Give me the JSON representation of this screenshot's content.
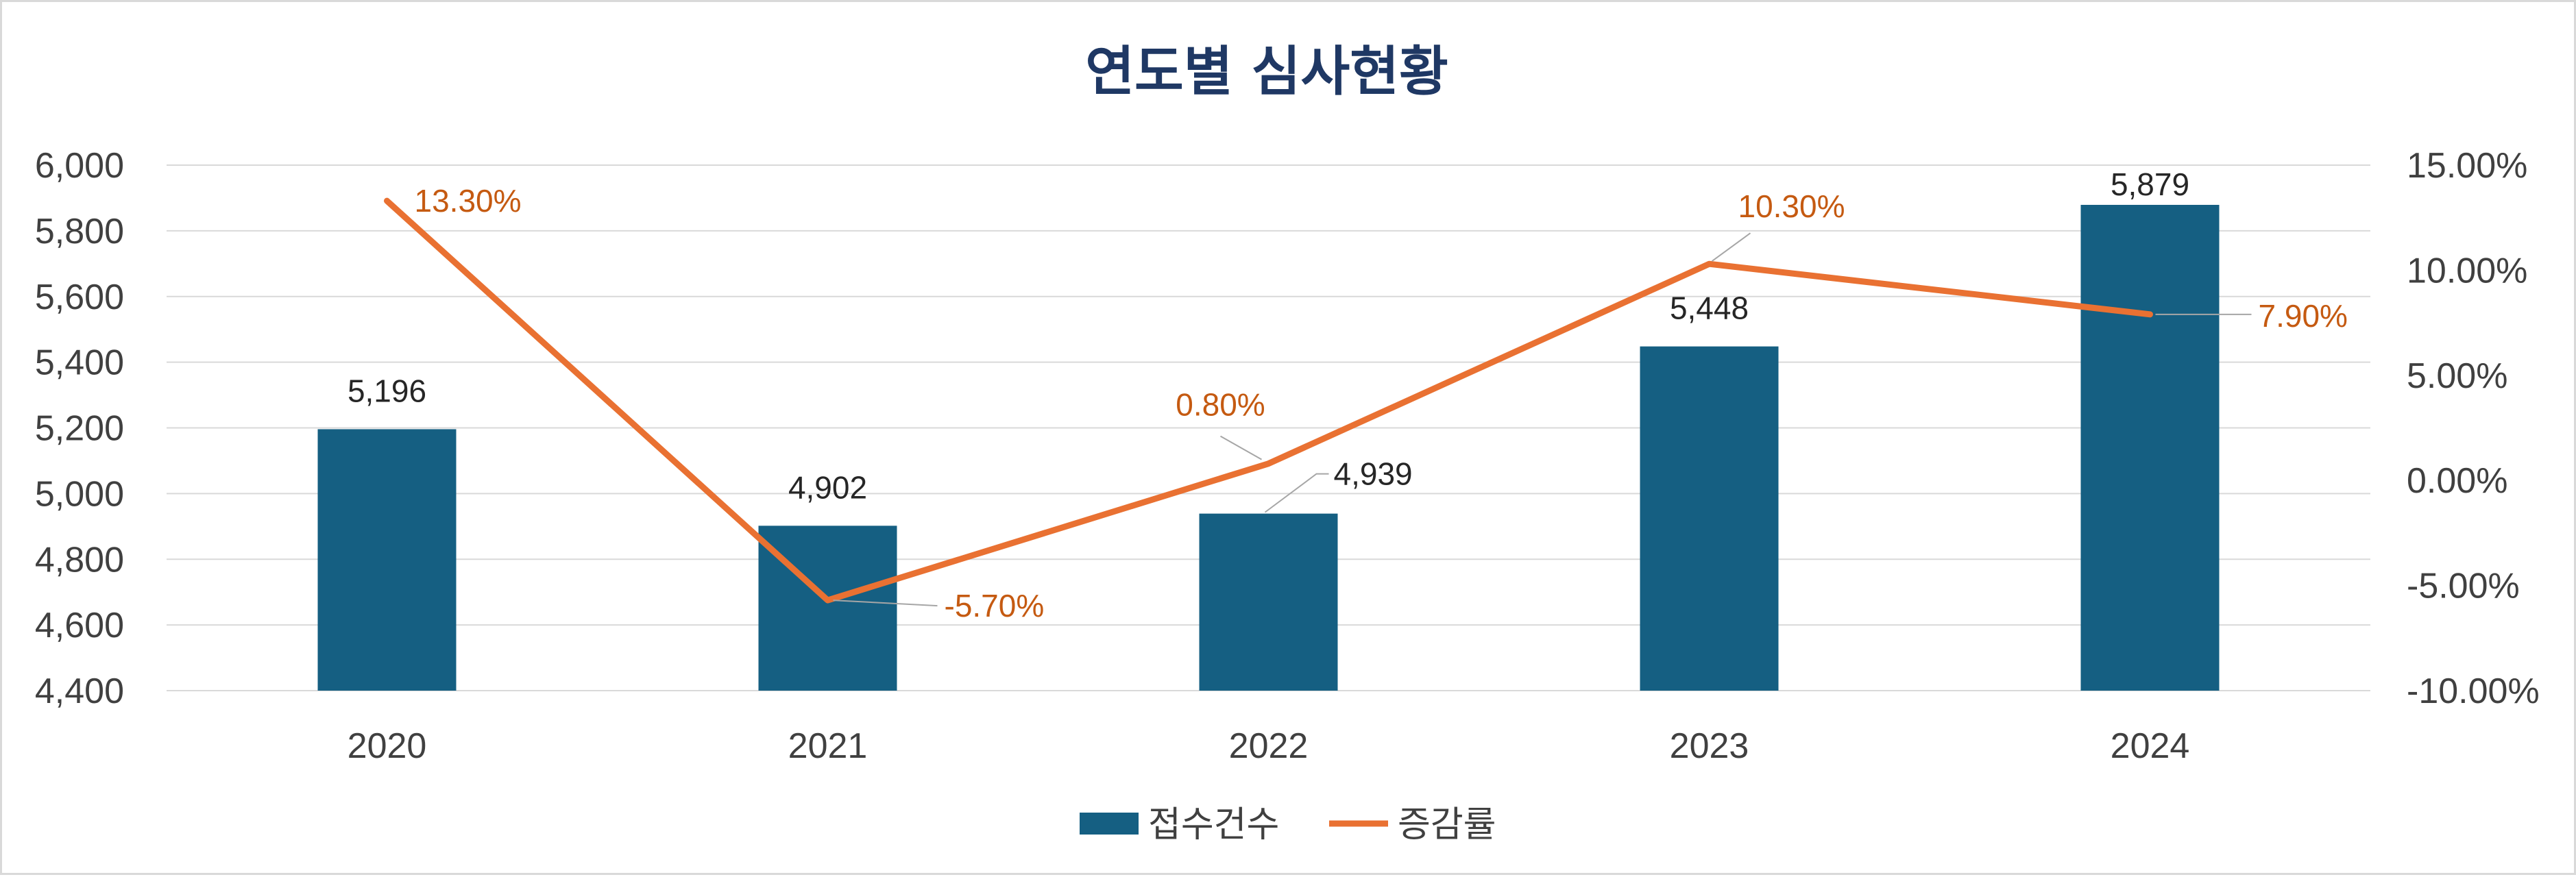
{
  "chart_data": {
    "type": "bar",
    "title": "연도별 심사현황",
    "categories": [
      "2020",
      "2021",
      "2022",
      "2023",
      "2024"
    ],
    "series": [
      {
        "name": "접수건수",
        "type": "bar",
        "axis": "left",
        "values": [
          5196,
          4902,
          4939,
          5448,
          5879
        ],
        "labels": [
          "5,196",
          "4,902",
          "4,939",
          "5,448",
          "5,879"
        ],
        "color": "#155f82"
      },
      {
        "name": "증감률",
        "type": "line",
        "axis": "right",
        "values": [
          13.3,
          -5.7,
          0.8,
          10.3,
          7.9
        ],
        "labels": [
          "13.30%",
          "-5.70%",
          "0.80%",
          "10.30%",
          "7.90%"
        ],
        "color": "#e97132",
        "label_color": "#c55a11"
      }
    ],
    "y_left": {
      "min": 4400,
      "max": 6000,
      "step": 200,
      "ticks": [
        "4,400",
        "4,600",
        "4,800",
        "5,000",
        "5,200",
        "5,400",
        "5,600",
        "5,800",
        "6,000"
      ]
    },
    "y_right": {
      "min": -10,
      "max": 15,
      "step": 5,
      "ticks": [
        "-10.00%",
        "-5.00%",
        "0.00%",
        "5.00%",
        "10.00%",
        "15.00%"
      ]
    },
    "grid": true,
    "legend_position": "bottom",
    "colors": {
      "title": "#1f3864",
      "grid": "#d9d9d9",
      "leader": "#a6a6a6"
    }
  }
}
